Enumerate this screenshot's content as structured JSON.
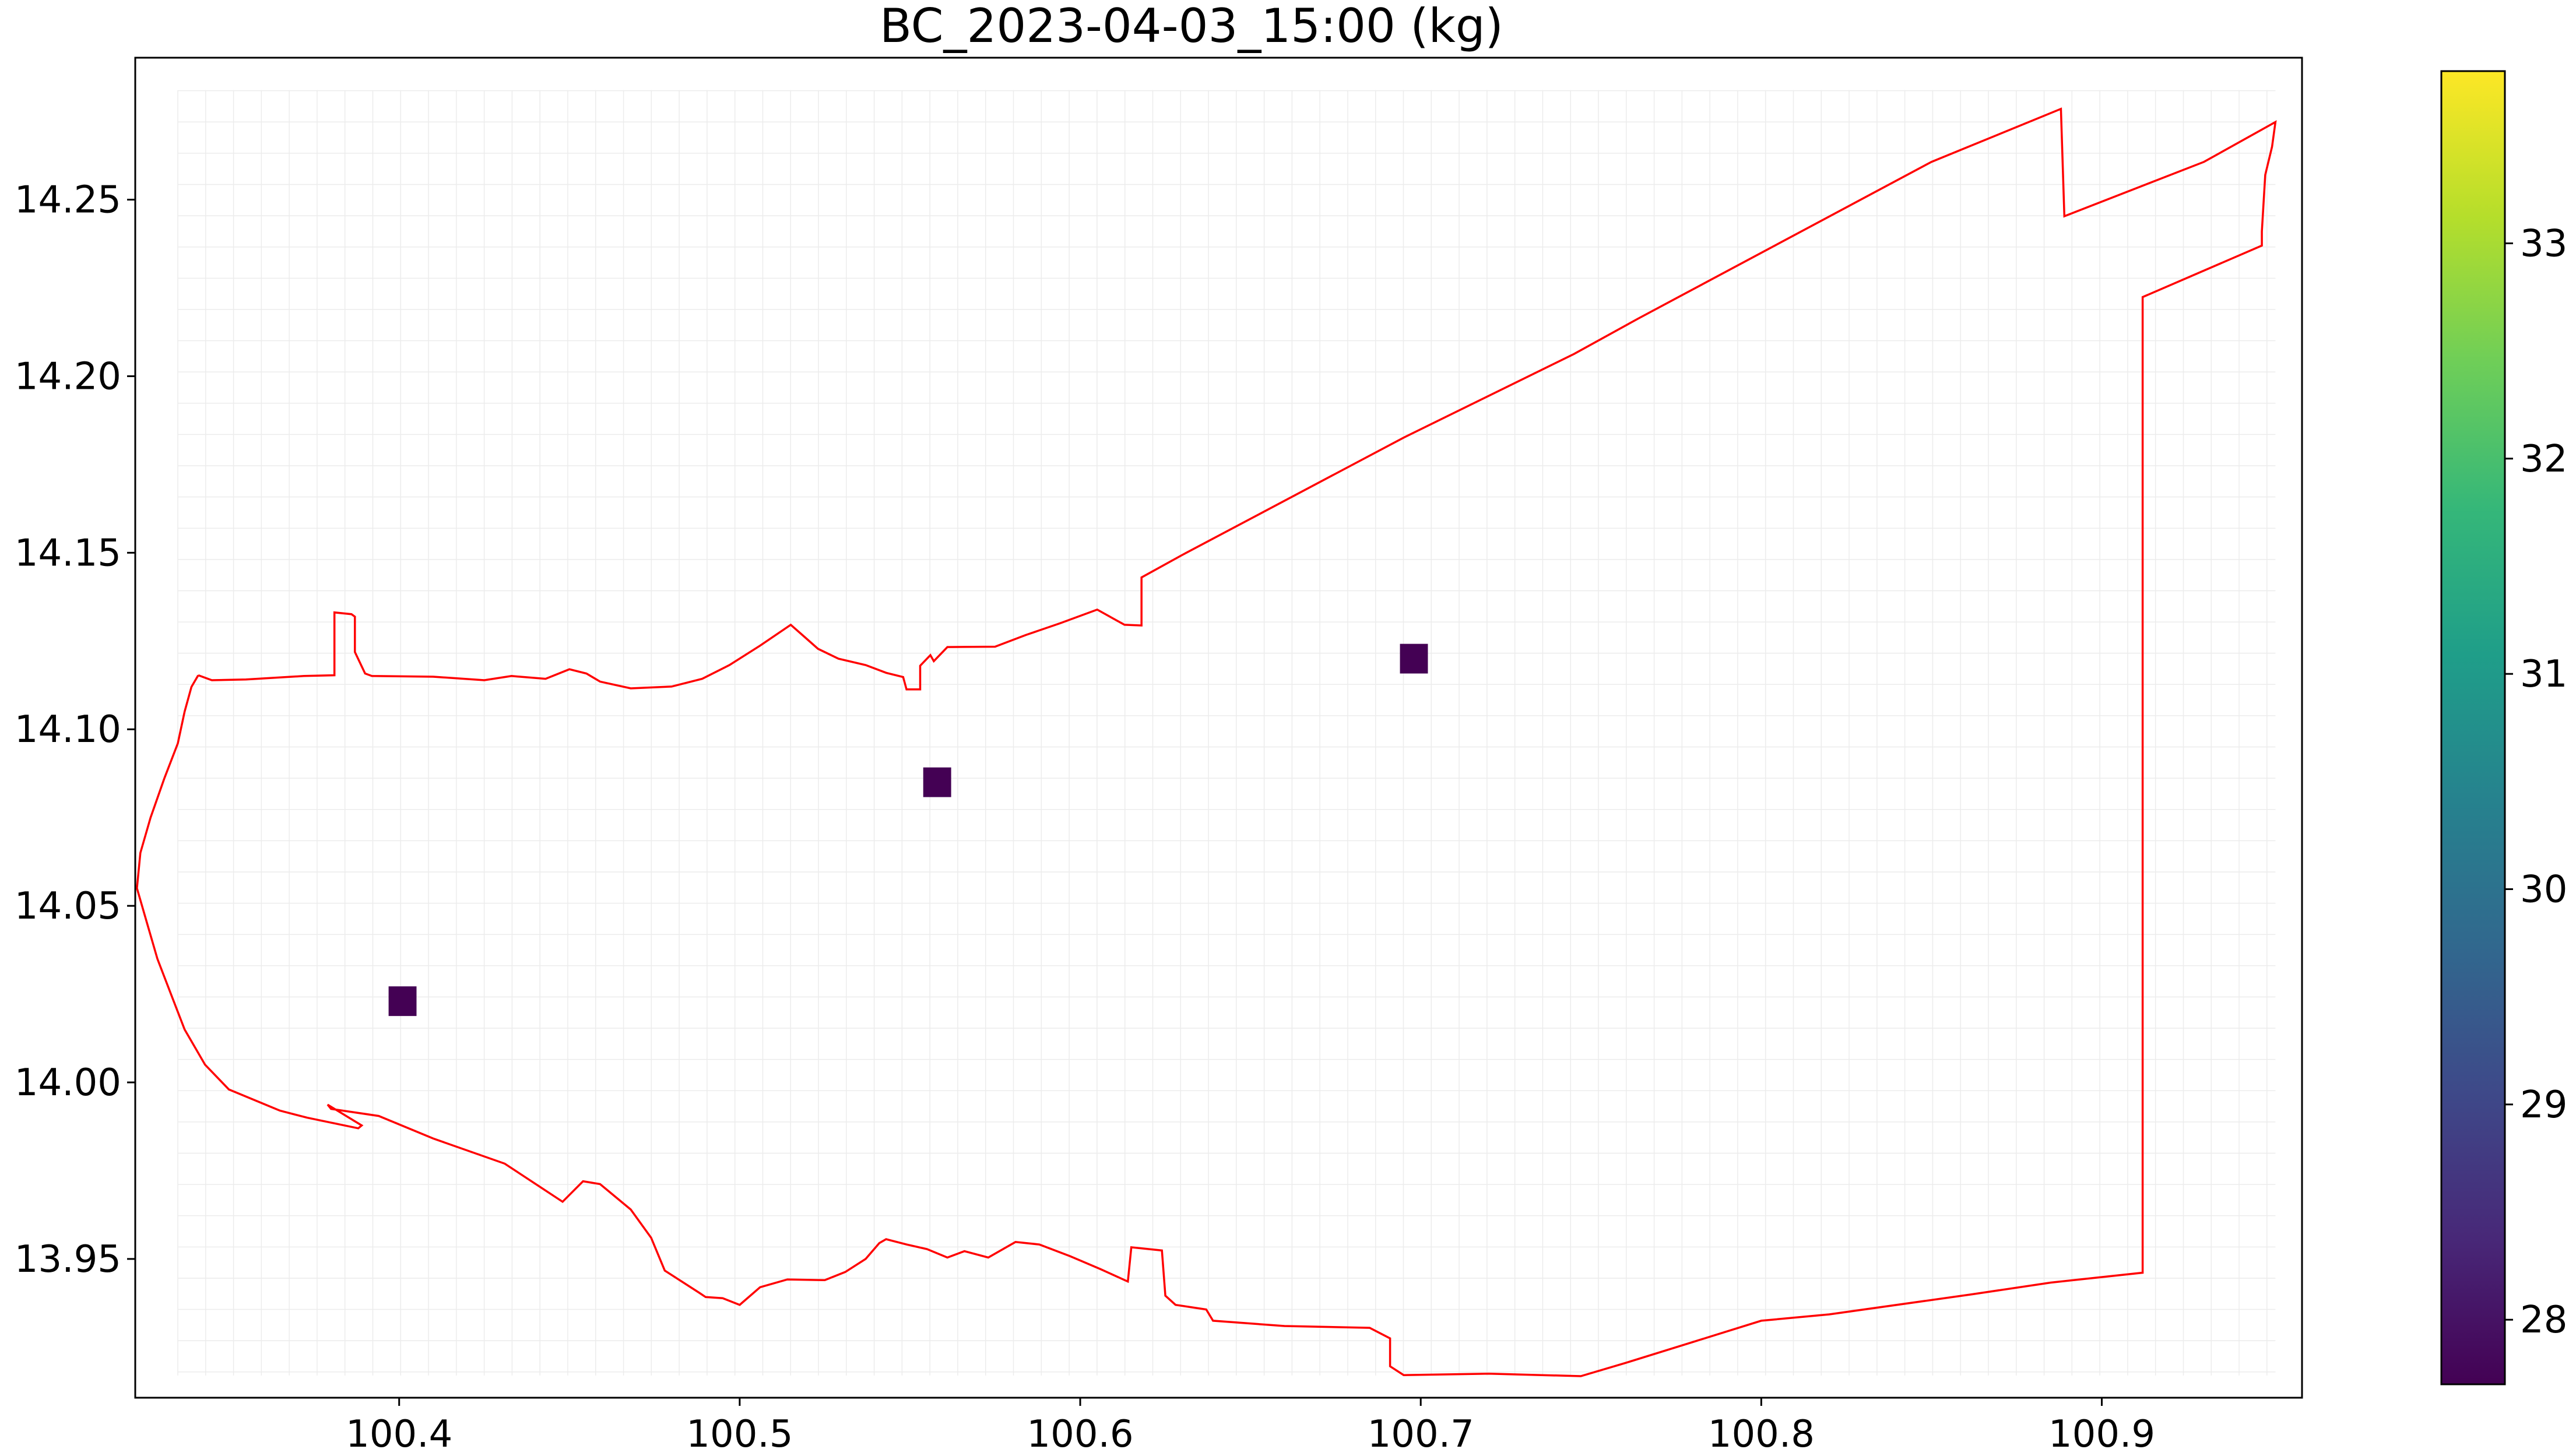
{
  "chart_data": {
    "type": "heatmap",
    "title": "BC_2023-04-03_15:00 (kg)",
    "xlabel": "",
    "ylabel": "",
    "xlim": [
      100.3225,
      100.9588
    ],
    "ylim": [
      13.9107,
      14.2902
    ],
    "x_ticks": [
      100.4,
      100.5,
      100.6,
      100.7,
      100.8,
      100.9
    ],
    "x_tick_labels": [
      "100.4",
      "100.5",
      "100.6",
      "100.7",
      "100.8",
      "100.9"
    ],
    "y_ticks": [
      13.95,
      14.0,
      14.05,
      14.1,
      14.15,
      14.2,
      14.25
    ],
    "y_tick_labels": [
      "13.95",
      "14.00",
      "14.05",
      "14.10",
      "14.15",
      "14.20",
      "14.25"
    ],
    "grid": true,
    "cells": [
      {
        "x": 100.401,
        "y": 14.023,
        "value": 27.7
      },
      {
        "x": 100.558,
        "y": 14.085,
        "value": 27.7
      },
      {
        "x": 100.698,
        "y": 14.12,
        "value": 27.7
      }
    ],
    "colorbar": {
      "colormap": "viridis",
      "vmin": 27.7,
      "vmax": 33.8,
      "ticks": [
        28,
        29,
        30,
        31,
        32,
        33
      ],
      "tick_labels": [
        "28",
        "29",
        "30",
        "31",
        "32",
        "33"
      ]
    },
    "boundary": {
      "color": "#ff0000",
      "points": [
        [
          100.341,
          14.1153
        ],
        [
          100.345,
          14.1139
        ],
        [
          100.355,
          14.1141
        ],
        [
          100.372,
          14.1151
        ],
        [
          100.381,
          14.1153
        ],
        [
          100.381,
          14.1331
        ],
        [
          100.386,
          14.1326
        ],
        [
          100.387,
          14.1319
        ],
        [
          100.387,
          14.1219
        ],
        [
          100.39,
          14.1158
        ],
        [
          100.392,
          14.1151
        ],
        [
          100.41,
          14.1149
        ],
        [
          100.425,
          14.1139
        ],
        [
          100.433,
          14.1151
        ],
        [
          100.443,
          14.1143
        ],
        [
          100.45,
          14.117
        ],
        [
          100.455,
          14.1158
        ],
        [
          100.459,
          14.1135
        ],
        [
          100.468,
          14.1116
        ],
        [
          100.48,
          14.1121
        ],
        [
          100.489,
          14.1143
        ],
        [
          100.497,
          14.1182
        ],
        [
          100.506,
          14.1237
        ],
        [
          100.515,
          14.1296
        ],
        [
          100.519,
          14.1262
        ],
        [
          100.523,
          14.1228
        ],
        [
          100.529,
          14.12
        ],
        [
          100.537,
          14.1182
        ],
        [
          100.543,
          14.116
        ],
        [
          100.548,
          14.1148
        ],
        [
          100.549,
          14.1113
        ],
        [
          100.553,
          14.1113
        ],
        [
          100.553,
          14.118
        ],
        [
          100.556,
          14.121
        ],
        [
          100.557,
          14.1193
        ],
        [
          100.561,
          14.1233
        ],
        [
          100.575,
          14.1234
        ],
        [
          100.584,
          14.1267
        ],
        [
          100.594,
          14.13
        ],
        [
          100.605,
          14.1339
        ],
        [
          100.613,
          14.1296
        ],
        [
          100.618,
          14.1294
        ],
        [
          100.618,
          14.143
        ],
        [
          100.63,
          14.1494
        ],
        [
          100.695,
          14.1826
        ],
        [
          100.745,
          14.2063
        ],
        [
          100.764,
          14.2164
        ],
        [
          100.85,
          14.2607
        ],
        [
          100.888,
          14.2757
        ],
        [
          100.889,
          14.2453
        ],
        [
          100.93,
          14.2607
        ],
        [
          100.951,
          14.272
        ],
        [
          100.95,
          14.265
        ],
        [
          100.948,
          14.257
        ],
        [
          100.947,
          14.241
        ],
        [
          100.947,
          14.237
        ],
        [
          100.912,
          14.2224
        ],
        [
          100.912,
          14.186
        ],
        [
          100.912,
          14.146
        ],
        [
          100.912,
          14.1
        ],
        [
          100.912,
          14.05
        ],
        [
          100.912,
          14.0
        ],
        [
          100.912,
          13.9461
        ],
        [
          100.885,
          13.9433
        ],
        [
          100.862,
          13.94
        ],
        [
          100.82,
          13.9343
        ],
        [
          100.8,
          13.9325
        ],
        [
          100.78,
          13.9265
        ],
        [
          100.76,
          13.9205
        ],
        [
          100.747,
          13.9168
        ],
        [
          100.72,
          13.9175
        ],
        [
          100.695,
          13.9171
        ],
        [
          100.691,
          13.9196
        ],
        [
          100.691,
          13.9275
        ],
        [
          100.685,
          13.9305
        ],
        [
          100.66,
          13.931
        ],
        [
          100.639,
          13.9325
        ],
        [
          100.637,
          13.9357
        ],
        [
          100.628,
          13.937
        ],
        [
          100.625,
          13.9396
        ],
        [
          100.624,
          13.9524
        ],
        [
          100.615,
          13.9533
        ],
        [
          100.614,
          13.9436
        ],
        [
          100.606,
          13.9471
        ],
        [
          100.597,
          13.9508
        ],
        [
          100.588,
          13.9541
        ],
        [
          100.581,
          13.9548
        ],
        [
          100.573,
          13.9504
        ],
        [
          100.566,
          13.9522
        ],
        [
          100.561,
          13.9504
        ],
        [
          100.555,
          13.9528
        ],
        [
          100.549,
          13.9541
        ],
        [
          100.543,
          13.9556
        ],
        [
          100.541,
          13.9545
        ],
        [
          100.537,
          13.95
        ],
        [
          100.531,
          13.9463
        ],
        [
          100.525,
          13.944
        ],
        [
          100.514,
          13.9442
        ],
        [
          100.506,
          13.942
        ],
        [
          100.5,
          13.937
        ],
        [
          100.495,
          13.9389
        ],
        [
          100.49,
          13.9392
        ],
        [
          100.488,
          13.9405
        ],
        [
          100.478,
          13.9467
        ],
        [
          100.474,
          13.956
        ],
        [
          100.468,
          13.964
        ],
        [
          100.459,
          13.9712
        ],
        [
          100.454,
          13.972
        ],
        [
          100.448,
          13.9662
        ],
        [
          100.431,
          13.977
        ],
        [
          100.41,
          13.9841
        ],
        [
          100.394,
          13.9905
        ],
        [
          100.38,
          13.9925
        ],
        [
          100.379,
          13.9937
        ],
        [
          100.389,
          13.9878
        ],
        [
          100.388,
          13.987
        ],
        [
          100.373,
          13.99
        ],
        [
          100.365,
          13.992
        ],
        [
          100.35,
          13.998
        ],
        [
          100.343,
          14.005
        ],
        [
          100.337,
          14.015
        ],
        [
          100.333,
          14.025
        ],
        [
          100.329,
          14.035
        ],
        [
          100.326,
          14.045
        ],
        [
          100.323,
          14.055
        ],
        [
          100.324,
          14.065
        ],
        [
          100.327,
          14.075
        ],
        [
          100.331,
          14.086
        ],
        [
          100.335,
          14.096
        ],
        [
          100.337,
          14.105
        ],
        [
          100.339,
          14.112
        ],
        [
          100.341,
          14.1153
        ]
      ]
    }
  }
}
